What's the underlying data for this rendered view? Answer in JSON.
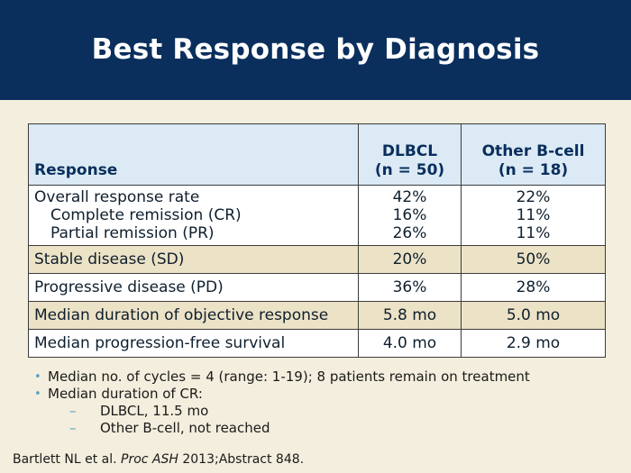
{
  "header": {
    "title": "Best Response by Diagnosis"
  },
  "table": {
    "headers": {
      "response": "Response",
      "dlbcl_line1": "DLBCL",
      "dlbcl_line2": "(n = 50)",
      "other_line1": "Other B-cell",
      "other_line2": "(n = 18)"
    },
    "orr": {
      "labels": [
        "Overall response rate",
        "Complete remission (CR)",
        "Partial remission (PR)"
      ],
      "dlbcl": [
        "42%",
        "16%",
        "26%"
      ],
      "other": [
        "22%",
        "11%",
        "11%"
      ]
    },
    "rows": [
      {
        "label": "Stable disease (SD)",
        "dlbcl": "20%",
        "other": "50%"
      },
      {
        "label": "Progressive disease (PD)",
        "dlbcl": "36%",
        "other": "28%"
      },
      {
        "label": "Median duration of objective response",
        "dlbcl": "5.8 mo",
        "other": "5.0 mo"
      },
      {
        "label": "Median progression-free survival",
        "dlbcl": "4.0 mo",
        "other": "2.9 mo"
      }
    ]
  },
  "notes": {
    "bullet1": "Median no. of cycles = 4 (range: 1-19); 8 patients remain on treatment",
    "bullet2": "Median duration of CR:",
    "sub1": "DLBCL, 11.5 mo",
    "sub2": "Other B-cell, not reached"
  },
  "citation": {
    "authors": "Bartlett NL et al. ",
    "journal": "Proc ASH",
    "rest": " 2013;Abstract 848."
  },
  "colors": {
    "header_bg": "#0a2f5d",
    "slide_bg": "#f3eedd",
    "table_header_bg": "#dbeaf4",
    "row_tan": "#ece2c6",
    "bullet": "#5aa3c4"
  }
}
